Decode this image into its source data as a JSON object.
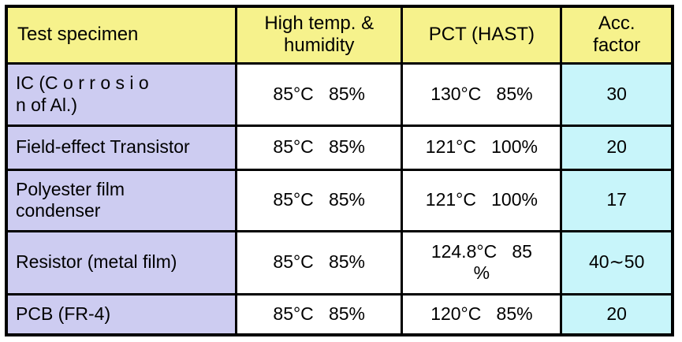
{
  "table": {
    "headers": [
      "Test specimen",
      "High temp. &\nhumidity",
      "PCT (HAST)",
      "Acc.\nfactor"
    ],
    "rows": [
      {
        "specimen": "IC (C o r r o s i o\nn of Al.)",
        "high_temp_humidity": "85°C   85%",
        "pct_hast": "130°C   85%",
        "acc_factor": "30"
      },
      {
        "specimen": "Field-effect Transistor",
        "high_temp_humidity": "85°C   85%",
        "pct_hast": "121°C   100%",
        "acc_factor": "20"
      },
      {
        "specimen": "Polyester film\ncondenser",
        "high_temp_humidity": "85°C   85%",
        "pct_hast": "121°C   100%",
        "acc_factor": "17"
      },
      {
        "specimen": "Resistor (metal film)",
        "high_temp_humidity": "85°C   85%",
        "pct_hast": "124.8°C   85\n%",
        "acc_factor": "40∼50"
      },
      {
        "specimen": "PCB (FR-4)",
        "high_temp_humidity": "85°C   85%",
        "pct_hast": "120°C   85%",
        "acc_factor": "20"
      }
    ]
  },
  "colors": {
    "header_bg": "#F6F28C",
    "specimen_bg": "#CDCCF1",
    "condition_bg": "#FFFFFF",
    "acc_factor_bg": "#C8F5FA",
    "border": "#000000",
    "text": "#000000"
  }
}
